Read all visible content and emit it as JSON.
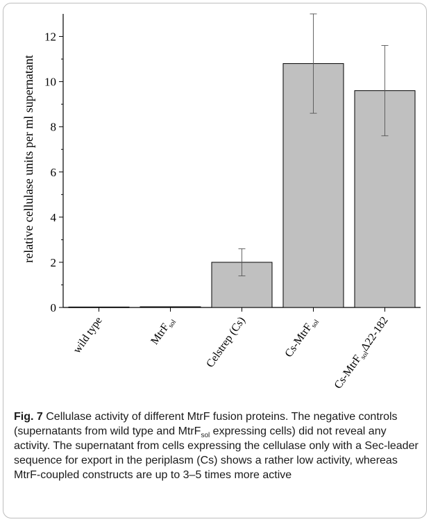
{
  "chart_data": {
    "type": "bar",
    "categories": [
      {
        "text": "wild type",
        "sub": "",
        "post": ""
      },
      {
        "text": "MtrF",
        "sub": "sol",
        "post": ""
      },
      {
        "text": "Celstrep (Cs)",
        "sub": "",
        "post": ""
      },
      {
        "text": "Cs-MtrF",
        "sub": "sol",
        "post": ""
      },
      {
        "text": "Cs-MtrF",
        "sub": "sol",
        "post": "Δ22-182"
      }
    ],
    "values": [
      0.02,
      0.03,
      2.0,
      10.8,
      9.6
    ],
    "errors": [
      [
        0.02,
        0.02
      ],
      [
        0.03,
        0.03
      ],
      [
        1.4,
        2.6
      ],
      [
        8.6,
        13.0
      ],
      [
        7.6,
        11.6
      ]
    ],
    "title": "",
    "xlabel": "",
    "ylabel": "relative cellulase units per ml supernatant",
    "ylim": [
      0,
      13
    ],
    "yticks": [
      "0",
      "2",
      "4",
      "6",
      "8",
      "10",
      "12"
    ],
    "bar_color": "#c0c0c0",
    "grid": false
  },
  "caption": {
    "label": "Fig. 7",
    "t1": "Cellulase activity of different MtrF fusion proteins. The negative controls (supernatants from wild type and MtrF",
    "sub": "sol",
    "t2": " expressing cells) did not reveal any activity. The supernatant from cells expressing the cellulase only with a Sec-leader sequence for export in the periplasm (Cs) shows a rather low activity, whereas MtrF-coupled constructs are up to 3–5 times more active"
  }
}
